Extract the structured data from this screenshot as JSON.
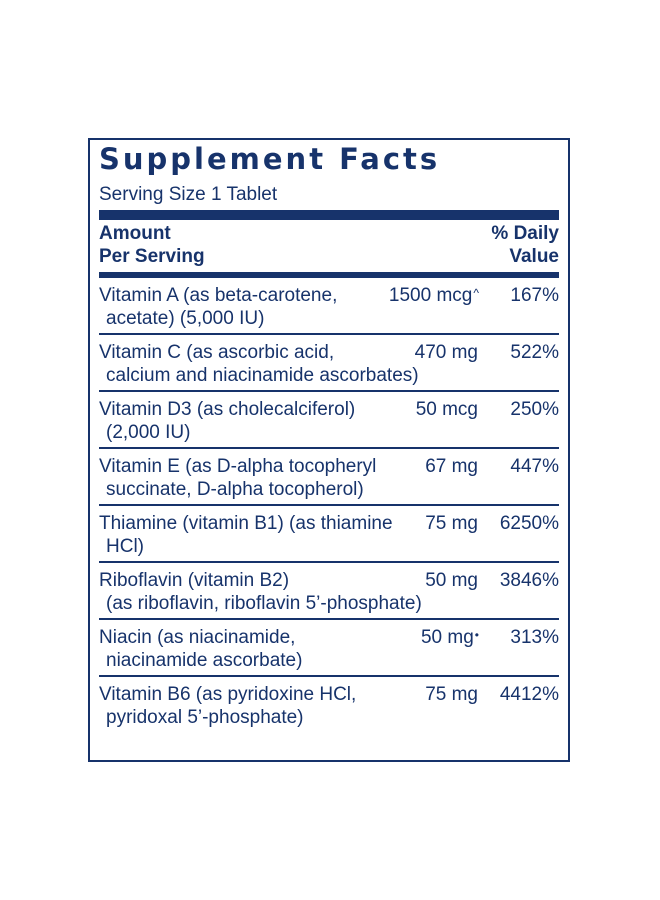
{
  "panel": {
    "title": "Supplement Facts",
    "serving_size": "Serving Size 1 Tablet",
    "header": {
      "amount_line1": "Amount",
      "amount_line2": "Per Serving",
      "dv_line1": "% Daily",
      "dv_line2": "Value"
    },
    "rows": [
      {
        "name_line1": "Vitamin A (as beta-carotene,",
        "name_line2": "acetate) (5,000 IU)",
        "amount": "1500 mcg",
        "mark": "^",
        "dv": "167%"
      },
      {
        "name_line1": "Vitamin C (as ascorbic acid,",
        "name_line2": "calcium and niacinamide ascorbates)",
        "amount": "470 mg",
        "mark": "",
        "dv": "522%"
      },
      {
        "name_line1": "Vitamin D3 (as cholecalciferol)",
        "name_line2": "(2,000 IU)",
        "amount": "50 mcg",
        "mark": "",
        "dv": "250%"
      },
      {
        "name_line1": "Vitamin E (as D-alpha tocopheryl",
        "name_line2": "succinate, D-alpha tocopherol)",
        "amount": "67 mg",
        "mark": "",
        "dv": "447%"
      },
      {
        "name_line1": "Thiamine (vitamin B1) (as thiamine",
        "name_line2": "HCl)",
        "amount": "75 mg",
        "mark": "",
        "dv": "6250%"
      },
      {
        "name_line1": "Riboflavin (vitamin B2)",
        "name_line2": "(as riboflavin, riboflavin 5’-phosphate)",
        "amount": "50 mg",
        "mark": "",
        "dv": "3846%"
      },
      {
        "name_line1": "Niacin (as niacinamide,",
        "name_line2": "niacinamide ascorbate)",
        "amount": "50 mg",
        "mark": "•",
        "dv": "313%"
      },
      {
        "name_line1": "Vitamin B6 (as pyridoxine HCl,",
        "name_line2": "pyridoxal 5’-phosphate)",
        "amount": "75 mg",
        "mark": "",
        "dv": "4412%"
      }
    ]
  }
}
